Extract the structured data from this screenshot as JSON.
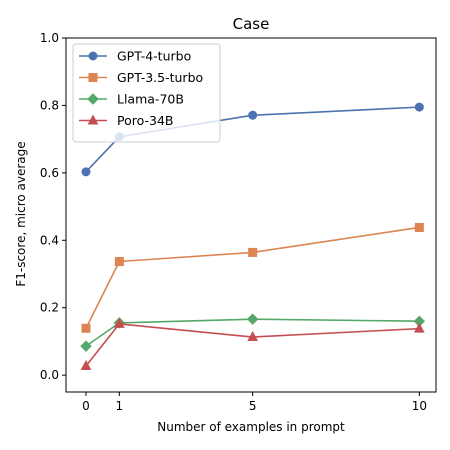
{
  "chart_data": {
    "type": "line",
    "title": "Case",
    "xlabel": "Number of examples in prompt",
    "ylabel": "F1-score, micro average",
    "x": [
      0,
      1,
      5,
      10
    ],
    "xlim": [
      -0.6,
      10.5
    ],
    "ylim": [
      -0.05,
      1.0
    ],
    "xticks": [
      0,
      1,
      5,
      10
    ],
    "xtick_labels": [
      "0",
      "1",
      "5",
      "10"
    ],
    "yticks": [
      0.0,
      0.2,
      0.4,
      0.6,
      0.8,
      1.0
    ],
    "ytick_labels": [
      "0.0",
      "0.2",
      "0.4",
      "0.6",
      "0.8",
      "1.0"
    ],
    "grid": false,
    "legend_position": "top-left",
    "series": [
      {
        "name": "GPT-4-turbo",
        "values": [
          0.603,
          0.707,
          0.771,
          0.795
        ],
        "color": "#4c72b0",
        "marker": "circle"
      },
      {
        "name": "GPT-3.5-turbo",
        "values": [
          0.139,
          0.337,
          0.364,
          0.438
        ],
        "color": "#dd8452",
        "marker": "square"
      },
      {
        "name": "Llama-70B",
        "values": [
          0.086,
          0.155,
          0.166,
          0.16
        ],
        "color": "#55a868",
        "marker": "diamond"
      },
      {
        "name": "Poro-34B",
        "values": [
          0.027,
          0.152,
          0.113,
          0.138
        ],
        "color": "#c44e52",
        "marker": "triangle"
      }
    ]
  }
}
